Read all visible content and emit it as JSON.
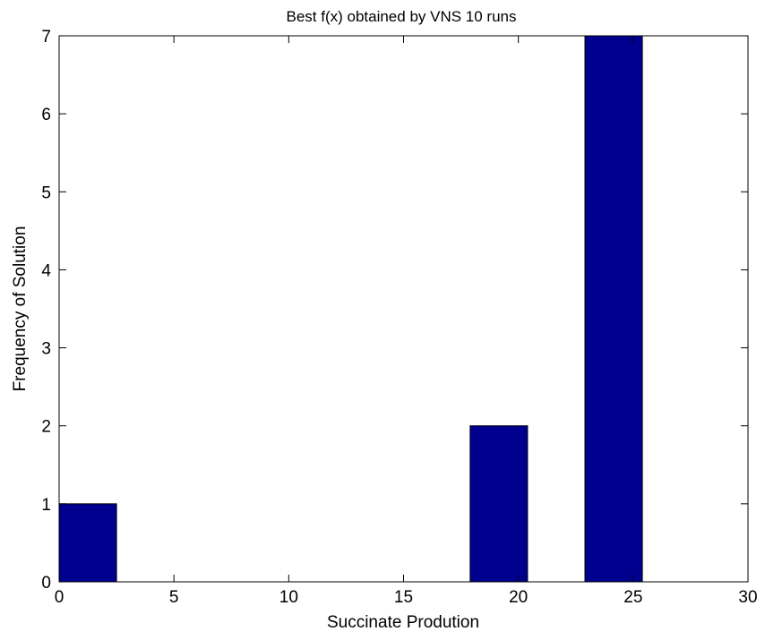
{
  "chart_data": {
    "type": "bar",
    "title": "Best f(x) obtained by VNS 10 runs",
    "xlabel": "Succinate Prodution",
    "ylabel": "Frequency of Solution",
    "xlim": [
      0,
      30
    ],
    "ylim": [
      0,
      7
    ],
    "xticks": [
      "0",
      "5",
      "10",
      "15",
      "20",
      "25",
      "30"
    ],
    "yticks": [
      "0",
      "1",
      "2",
      "3",
      "4",
      "5",
      "6",
      "7"
    ],
    "bars": [
      {
        "x0": 0.0,
        "x1": 2.5,
        "value": 1
      },
      {
        "x0": 17.9,
        "x1": 20.4,
        "value": 2
      },
      {
        "x0": 22.9,
        "x1": 25.4,
        "value": 7
      }
    ],
    "bar_color": "#00008f",
    "grid": false
  }
}
